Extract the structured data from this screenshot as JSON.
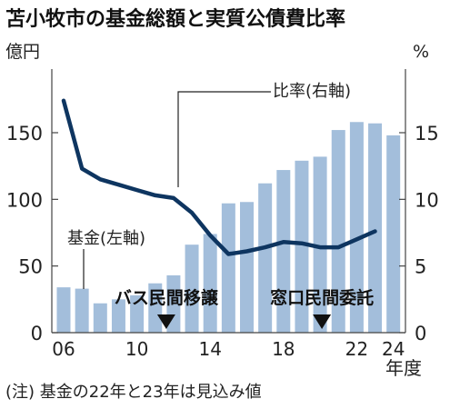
{
  "chart_data": {
    "type": "bar+line",
    "title": "苫小牧市の基金総額と実質公債費比率",
    "left_unit": "億円",
    "right_unit": "%",
    "x_unit": "年度",
    "x": [
      2006,
      2007,
      2008,
      2009,
      2010,
      2011,
      2012,
      2013,
      2014,
      2015,
      2016,
      2017,
      2018,
      2019,
      2020,
      2021,
      2022,
      2023,
      2024
    ],
    "x_ticks": [
      {
        "year": 2006,
        "label": "06"
      },
      {
        "year": 2010,
        "label": "10"
      },
      {
        "year": 2014,
        "label": "14"
      },
      {
        "year": 2018,
        "label": "18"
      },
      {
        "year": 2022,
        "label": "22"
      },
      {
        "year": 2024,
        "label": "24"
      }
    ],
    "left_ticks": [
      0,
      50,
      100,
      150
    ],
    "right_ticks": [
      0,
      5,
      10,
      15
    ],
    "left_ylim": [
      0,
      190
    ],
    "right_ylim": [
      0,
      19
    ],
    "bars": {
      "label": "基金(左軸)",
      "values": [
        34,
        33,
        22,
        25,
        28,
        37,
        43,
        66,
        74,
        97,
        98,
        112,
        122,
        129,
        132,
        152,
        158,
        157,
        148
      ]
    },
    "line": {
      "label": "比率(右軸)",
      "x": [
        2006,
        2007,
        2008,
        2009,
        2010,
        2011,
        2012,
        2013,
        2014,
        2015,
        2016,
        2017,
        2018,
        2019,
        2020,
        2021,
        2022,
        2023
      ],
      "values": [
        17.4,
        12.3,
        11.5,
        11.1,
        10.7,
        10.3,
        10.1,
        9.0,
        7.3,
        5.9,
        6.1,
        6.4,
        6.8,
        6.7,
        6.4,
        6.4,
        7.0,
        7.6
      ]
    },
    "events": [
      {
        "year": 2012,
        "label": "バス民間移譲"
      },
      {
        "year": 2020,
        "label": "窓口民間委託"
      }
    ],
    "note": "(注) 基金の22年と23年は見込み値",
    "colors": {
      "bar": "#a3bedb",
      "line": "#0e3560",
      "text": "#222222"
    }
  }
}
